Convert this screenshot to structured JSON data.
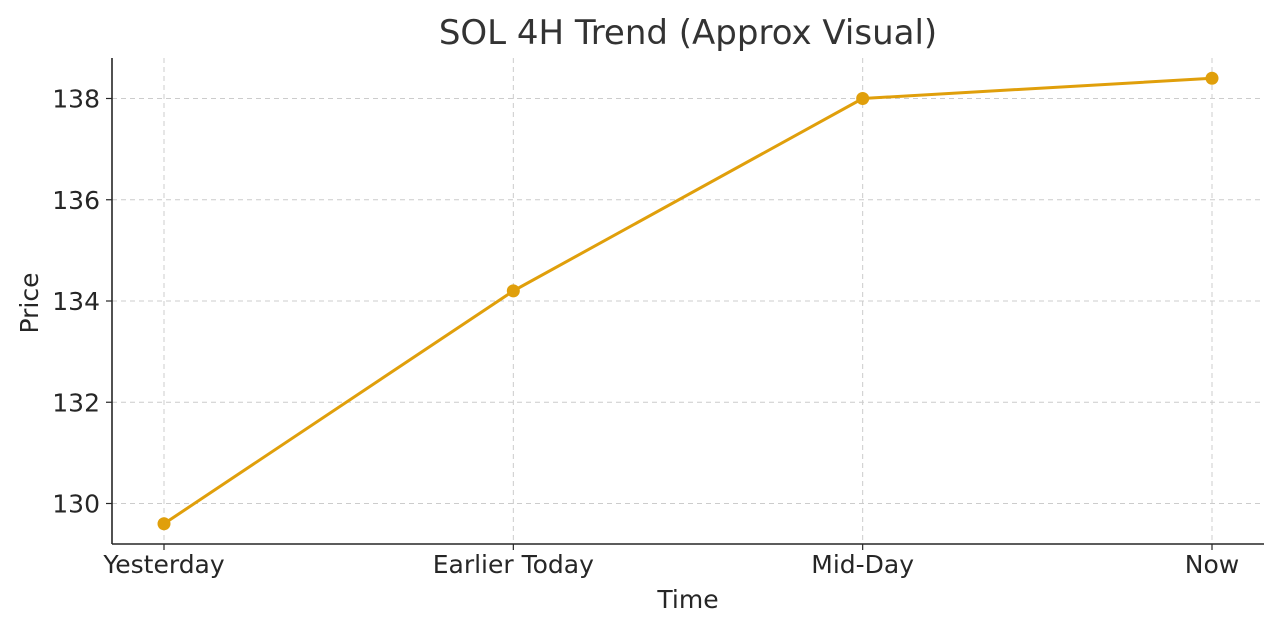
{
  "chart_data": {
    "type": "line",
    "title": "SOL 4H Trend (Approx Visual)",
    "xlabel": "Time",
    "ylabel": "Price",
    "categories": [
      "Yesterday",
      "Earlier Today",
      "Mid-Day",
      "Now"
    ],
    "series": [
      {
        "name": "SOL",
        "values": [
          129.6,
          134.2,
          138.0,
          138.4
        ],
        "color": "#e09f0b"
      }
    ],
    "ylim": [
      129.2,
      138.8
    ],
    "yticks": [
      130,
      132,
      134,
      136,
      138
    ],
    "grid": true,
    "legend": "none"
  }
}
